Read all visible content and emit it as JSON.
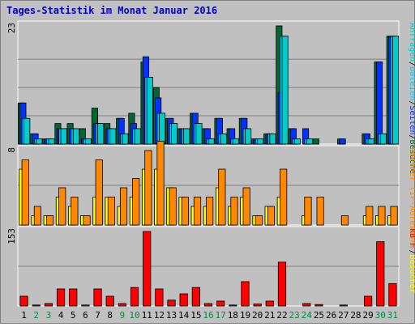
{
  "colors": {
    "background": "#c0c0c0",
    "plot_background": "#ffffff",
    "grid": "#808080",
    "title": "#0000cc",
    "visits": "#006633",
    "pages": "#0033ff",
    "files": "#00ccff",
    "requests": "#00cccc",
    "sites": "#ffff00",
    "visitors": "#ff8800",
    "kbytes": "#ff0000"
  },
  "chart_data": {
    "title": "Tages-Statistik im Monat Januar 2016",
    "type": "bar",
    "days": [
      "1",
      "2",
      "3",
      "4",
      "5",
      "6",
      "7",
      "8",
      "9",
      "10",
      "11",
      "12",
      "13",
      "14",
      "15",
      "16",
      "17",
      "18",
      "19",
      "20",
      "21",
      "22",
      "23",
      "24",
      "25",
      "26",
      "27",
      "28",
      "29",
      "30",
      "31"
    ],
    "weekend_days": [
      2,
      3,
      9,
      10,
      16,
      17,
      23,
      24,
      30,
      31
    ],
    "panels": [
      {
        "name": "top",
        "ymax_label": "23",
        "ymax": 23,
        "side_label": "Anfragen/Dateien/Seiten/Besuche",
        "series": [
          {
            "key": "visits",
            "values": [
              8,
              2,
              1,
              4,
              4,
              3,
              7,
              4,
              5,
              6,
              16,
              11,
              5,
              3,
              6,
              3,
              5,
              3,
              5,
              1,
              2,
              23,
              3,
              0,
              1,
              0,
              1,
              0,
              2,
              16,
              21
            ]
          },
          {
            "key": "pages",
            "values": [
              8,
              2,
              1,
              3,
              3,
              1,
              4,
              3,
              5,
              4,
              17,
              9,
              5,
              3,
              6,
              3,
              5,
              3,
              5,
              1,
              2,
              10,
              3,
              3,
              0,
              0,
              1,
              0,
              2,
              16,
              21
            ]
          },
          {
            "key": "files",
            "values": [
              5,
              1,
              1,
              3,
              3,
              1,
              4,
              3,
              2,
              3,
              13,
              6,
              4,
              3,
              4,
              1,
              2,
              1,
              3,
              1,
              2,
              21,
              1,
              1,
              0,
              0,
              0,
              0,
              1,
              2,
              21
            ]
          },
          {
            "key": "requests",
            "values": [
              5,
              1,
              1,
              3,
              3,
              1,
              4,
              3,
              2,
              3,
              13,
              6,
              4,
              3,
              4,
              1,
              2,
              1,
              3,
              1,
              2,
              21,
              1,
              1,
              0,
              0,
              0,
              0,
              1,
              2,
              21
            ]
          }
        ]
      },
      {
        "name": "middle",
        "ymax_label": "8",
        "ymax": 8,
        "side_label": "Rechner (IP-Adressen)/Besucher",
        "series": [
          {
            "key": "sites",
            "values": [
              6,
              1,
              1,
              3,
              2,
              1,
              3,
              3,
              2,
              3,
              6,
              6,
              4,
              3,
              2,
              2,
              4,
              2,
              3,
              1,
              2,
              3,
              0,
              1,
              0,
              0,
              0,
              0,
              1,
              1,
              1
            ]
          },
          {
            "key": "visitors",
            "values": [
              7,
              2,
              1,
              4,
              3,
              1,
              7,
              3,
              4,
              5,
              8,
              9,
              4,
              3,
              3,
              3,
              6,
              3,
              4,
              1,
              2,
              6,
              0,
              3,
              3,
              0,
              1,
              0,
              2,
              2,
              2
            ]
          }
        ]
      },
      {
        "name": "bottom",
        "ymax_label": "153",
        "ymax": 153,
        "side_label": "kB F",
        "series": [
          {
            "key": "kbytes",
            "values": [
              20,
              2,
              5,
              35,
              35,
              2,
              35,
              20,
              5,
              38,
              153,
              35,
              12,
              25,
              38,
              5,
              10,
              2,
              50,
              4,
              10,
              90,
              0,
              5,
              3,
              0,
              2,
              0,
              20,
              132,
              46
            ]
          }
        ]
      }
    ]
  }
}
